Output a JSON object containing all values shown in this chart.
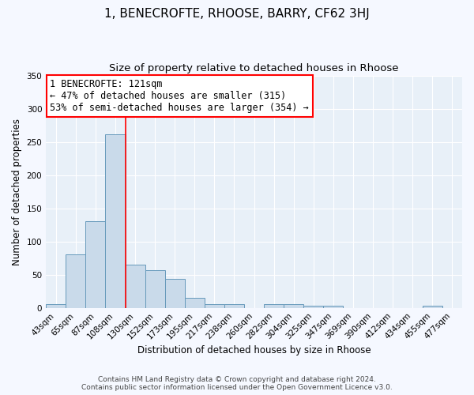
{
  "title": "1, BENECROFTE, RHOOSE, BARRY, CF62 3HJ",
  "subtitle": "Size of property relative to detached houses in Rhoose",
  "xlabel": "Distribution of detached houses by size in Rhoose",
  "ylabel": "Number of detached properties",
  "bar_color": "#c9daea",
  "bar_edge_color": "#6699bb",
  "background_color": "#e8f0f8",
  "fig_background": "#f5f8ff",
  "grid_color": "#ffffff",
  "categories": [
    "43sqm",
    "65sqm",
    "87sqm",
    "108sqm",
    "130sqm",
    "152sqm",
    "173sqm",
    "195sqm",
    "217sqm",
    "238sqm",
    "260sqm",
    "282sqm",
    "304sqm",
    "325sqm",
    "347sqm",
    "369sqm",
    "390sqm",
    "412sqm",
    "434sqm",
    "455sqm",
    "477sqm"
  ],
  "values": [
    6,
    81,
    130,
    262,
    65,
    57,
    44,
    15,
    6,
    6,
    0,
    6,
    6,
    3,
    3,
    0,
    0,
    0,
    0,
    3,
    0
  ],
  "ylim": [
    0,
    350
  ],
  "yticks": [
    0,
    50,
    100,
    150,
    200,
    250,
    300,
    350
  ],
  "property_label": "1 BENECROFTE: 121sqm",
  "annotation_line1": "← 47% of detached houses are smaller (315)",
  "annotation_line2": "53% of semi-detached houses are larger (354) →",
  "vline_x_bin": 3.5,
  "footer_line1": "Contains HM Land Registry data © Crown copyright and database right 2024.",
  "footer_line2": "Contains public sector information licensed under the Open Government Licence v3.0.",
  "title_fontsize": 11,
  "subtitle_fontsize": 9.5,
  "axis_label_fontsize": 8.5,
  "tick_fontsize": 7.5,
  "annotation_fontsize": 8.5,
  "footer_fontsize": 6.5
}
